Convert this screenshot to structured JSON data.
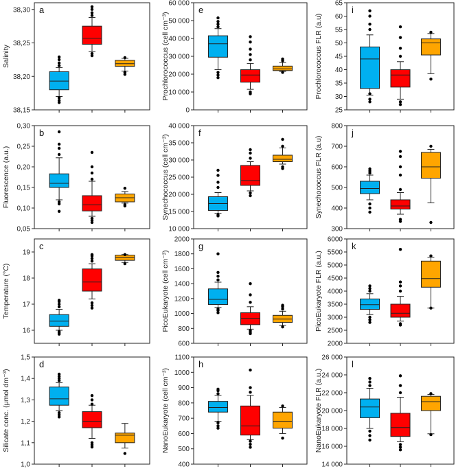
{
  "colors": {
    "blue": "#00b0f0",
    "red": "#ff0000",
    "orange": "#ffa500"
  },
  "chart_data": [
    {
      "type": "box",
      "panel": "a",
      "ylabel": "Salinity",
      "ylim": [
        38.15,
        38.31
      ],
      "ticks": [
        38.15,
        38.2,
        38.25,
        38.3
      ],
      "tick_labels": [
        "38,15",
        "38,20",
        "38,25",
        "38,30"
      ],
      "groups": [
        {
          "color": "blue",
          "whisker_low": 38.17,
          "q1": 38.18,
          "median": 38.193,
          "q3": 38.207,
          "whisker_high": 38.213,
          "outliers": [
            38.161,
            38.164,
            38.168,
            38.216,
            38.22,
            38.225,
            38.229
          ]
        },
        {
          "color": "red",
          "whisker_low": 38.237,
          "q1": 38.248,
          "median": 38.257,
          "q3": 38.275,
          "whisker_high": 38.288,
          "outliers": [
            38.231,
            38.234,
            38.291,
            38.295,
            38.3,
            38.304
          ]
        },
        {
          "color": "orange",
          "whisker_low": 38.208,
          "q1": 38.215,
          "median": 38.219,
          "q3": 38.224,
          "whisker_high": 38.227,
          "outliers": [
            38.203,
            38.206,
            38.228
          ]
        }
      ]
    },
    {
      "type": "box",
      "panel": "e",
      "ylabel": "Prochlorococcus (cell cm⁻³)",
      "ylim": [
        0,
        60000
      ],
      "ticks": [
        0,
        10000,
        20000,
        30000,
        40000,
        50000,
        60000
      ],
      "tick_labels": [
        "0",
        "10 000",
        "20 000",
        "30 000",
        "40 000",
        "50 000",
        "60 000"
      ],
      "groups": [
        {
          "color": "blue",
          "whisker_low": 22500,
          "q1": 29500,
          "median": 37000,
          "q3": 41500,
          "whisker_high": 45500,
          "outliers": [
            18000,
            19500,
            21000,
            46500,
            48000,
            49500,
            51500
          ]
        },
        {
          "color": "red",
          "whisker_low": 11500,
          "q1": 15500,
          "median": 19500,
          "q3": 22500,
          "whisker_high": 26000,
          "outliers": [
            9000,
            10000,
            28000,
            31000,
            34000,
            38000,
            41000
          ]
        },
        {
          "color": "orange",
          "whisker_low": 21500,
          "q1": 22000,
          "median": 23000,
          "q3": 24500,
          "whisker_high": 26500,
          "outliers": [
            21000,
            27500,
            28500
          ]
        }
      ]
    },
    {
      "type": "box",
      "panel": "i",
      "ylabel": "Prochlorococcus FLR (a.u)",
      "ylim": [
        25,
        65
      ],
      "ticks": [
        25,
        30,
        35,
        40,
        45,
        50,
        55,
        60,
        65
      ],
      "tick_labels": [
        "25",
        "30",
        "35",
        "40",
        "45",
        "50",
        "55",
        "60",
        "65"
      ],
      "groups": [
        {
          "color": "blue",
          "whisker_low": 30.5,
          "q1": 33,
          "median": 44,
          "q3": 48.5,
          "whisker_high": 53,
          "outliers": [
            28,
            29,
            31,
            55,
            57,
            60,
            62
          ]
        },
        {
          "color": "red",
          "whisker_low": 29,
          "q1": 33.5,
          "median": 38,
          "q3": 40,
          "whisker_high": 43,
          "outliers": [
            27,
            28,
            45,
            48,
            52,
            56
          ]
        },
        {
          "color": "orange",
          "whisker_low": 38.5,
          "q1": 45.5,
          "median": 50,
          "q3": 51.5,
          "whisker_high": 53.5,
          "outliers": [
            36.5,
            54
          ]
        }
      ]
    },
    {
      "type": "box",
      "panel": "b",
      "ylabel": "Fluorescence (a.u.)",
      "ylim": [
        0.05,
        0.3
      ],
      "ticks": [
        0.05,
        0.1,
        0.15,
        0.2,
        0.25,
        0.3
      ],
      "tick_labels": [
        "0,05",
        "0,10",
        "0,15",
        "0,20",
        "0,25",
        "0,30"
      ],
      "groups": [
        {
          "color": "blue",
          "whisker_low": 0.12,
          "q1": 0.15,
          "median": 0.16,
          "q3": 0.183,
          "whisker_high": 0.222,
          "outliers": [
            0.092,
            0.11,
            0.115,
            0.23,
            0.245,
            0.255,
            0.285
          ]
        },
        {
          "color": "red",
          "whisker_low": 0.08,
          "q1": 0.093,
          "median": 0.108,
          "q3": 0.13,
          "whisker_high": 0.165,
          "outliers": [
            0.065,
            0.07,
            0.075,
            0.17,
            0.185,
            0.2,
            0.235
          ]
        },
        {
          "color": "orange",
          "whisker_low": 0.112,
          "q1": 0.115,
          "median": 0.125,
          "q3": 0.134,
          "whisker_high": 0.14,
          "outliers": [
            0.105,
            0.108,
            0.148
          ]
        }
      ]
    },
    {
      "type": "box",
      "panel": "f",
      "ylabel": "Synechococcus (cell cm⁻³)",
      "ylim": [
        10000,
        40000
      ],
      "ticks": [
        10000,
        15000,
        20000,
        25000,
        30000,
        35000,
        40000
      ],
      "tick_labels": [
        "10 000",
        "15 000",
        "20 000",
        "25 000",
        "30 000",
        "35 000",
        "40 000"
      ],
      "groups": [
        {
          "color": "blue",
          "whisker_low": 14500,
          "q1": 15300,
          "median": 17300,
          "q3": 19300,
          "whisker_high": 20500,
          "outliers": [
            13700,
            14000,
            22000,
            23500,
            25500,
            27000
          ]
        },
        {
          "color": "red",
          "whisker_low": 21000,
          "q1": 22600,
          "median": 24000,
          "q3": 28400,
          "whisker_high": 29500,
          "outliers": [
            19600,
            20400,
            30500,
            32000,
            33000
          ]
        },
        {
          "color": "orange",
          "whisker_low": 28800,
          "q1": 29500,
          "median": 30200,
          "q3": 31400,
          "whisker_high": 33500,
          "outliers": [
            27500,
            28000,
            34000,
            36000
          ]
        }
      ]
    },
    {
      "type": "box",
      "panel": "j",
      "ylabel": "Synechococcus FLR (a.u)",
      "ylim": [
        300,
        800
      ],
      "ticks": [
        300,
        400,
        500,
        600,
        700,
        800
      ],
      "tick_labels": [
        "300",
        "400",
        "500",
        "600",
        "700",
        "800"
      ],
      "groups": [
        {
          "color": "blue",
          "whisker_low": 440,
          "q1": 470,
          "median": 495,
          "q3": 530,
          "whisker_high": 560,
          "outliers": [
            380,
            400,
            420,
            570,
            580,
            590
          ]
        },
        {
          "color": "red",
          "whisker_low": 370,
          "q1": 395,
          "median": 410,
          "q3": 440,
          "whisker_high": 475,
          "outliers": [
            335,
            345,
            490,
            560,
            600,
            650,
            675
          ]
        },
        {
          "color": "orange",
          "whisker_low": 425,
          "q1": 545,
          "median": 600,
          "q3": 670,
          "whisker_high": 685,
          "outliers": [
            330,
            700
          ]
        }
      ]
    },
    {
      "type": "box",
      "panel": "c",
      "ylabel": "Temperature (°C)",
      "ylim": [
        15.5,
        19.5
      ],
      "ticks": [
        16,
        17,
        18,
        19
      ],
      "tick_labels": [
        "16",
        "17",
        "18",
        "19"
      ],
      "groups": [
        {
          "color": "blue",
          "whisker_low": 16.0,
          "q1": 16.15,
          "median": 16.35,
          "q3": 16.6,
          "whisker_high": 16.8,
          "outliers": [
            15.85,
            15.9,
            15.95,
            16.9,
            17.0,
            17.1,
            17.15
          ]
        },
        {
          "color": "red",
          "whisker_low": 17.2,
          "q1": 17.5,
          "median": 17.85,
          "q3": 18.35,
          "whisker_high": 18.55,
          "outliers": [
            16.85,
            16.95,
            17.05,
            18.65,
            18.75,
            18.85,
            18.9
          ]
        },
        {
          "color": "orange",
          "whisker_low": 18.6,
          "q1": 18.68,
          "median": 18.78,
          "q3": 18.88,
          "whisker_high": 18.9,
          "outliers": [
            18.55,
            18.9
          ]
        }
      ]
    },
    {
      "type": "box",
      "panel": "g",
      "ylabel": "PicoEukaryote (cell cm⁻³)",
      "ylim": [
        600,
        2000
      ],
      "ticks": [
        600,
        800,
        1000,
        1200,
        1400,
        1600,
        1800,
        2000
      ],
      "tick_labels": [
        "600",
        "800",
        "1000",
        "1200",
        "1400",
        "1600",
        "1800",
        "2000"
      ],
      "groups": [
        {
          "color": "blue",
          "whisker_low": 1080,
          "q1": 1120,
          "median": 1190,
          "q3": 1330,
          "whisker_high": 1420,
          "outliers": [
            1010,
            1040,
            1060,
            1450,
            1500,
            1550,
            1800
          ]
        },
        {
          "color": "red",
          "whisker_low": 790,
          "q1": 850,
          "median": 935,
          "q3": 1010,
          "whisker_high": 1090,
          "outliers": [
            730,
            750,
            770,
            1150,
            1250,
            1400
          ]
        },
        {
          "color": "orange",
          "whisker_low": 840,
          "q1": 880,
          "median": 925,
          "q3": 975,
          "whisker_high": 1030,
          "outliers": [
            820,
            1060,
            1090,
            1110
          ]
        }
      ]
    },
    {
      "type": "box",
      "panel": "k",
      "ylabel": "PicoEukaryote FLR (a.u.)",
      "ylim": [
        2000,
        6000
      ],
      "ticks": [
        2000,
        2500,
        3000,
        3500,
        4000,
        4500,
        5000,
        5500,
        6000
      ],
      "tick_labels": [
        "2000",
        "2500",
        "3000",
        "3500",
        "4000",
        "4500",
        "5000",
        "5500",
        "6000"
      ],
      "groups": [
        {
          "color": "blue",
          "whisker_low": 3100,
          "q1": 3300,
          "median": 3480,
          "q3": 3700,
          "whisker_high": 3900,
          "outliers": [
            2800,
            2900,
            3000,
            4000,
            4100,
            4200
          ]
        },
        {
          "color": "red",
          "whisker_low": 2850,
          "q1": 3000,
          "median": 3150,
          "q3": 3500,
          "whisker_high": 3800,
          "outliers": [
            2700,
            2750,
            4000,
            4200,
            4350,
            5600
          ]
        },
        {
          "color": "orange",
          "whisker_low": 3350,
          "q1": 4150,
          "median": 4480,
          "q3": 5150,
          "whisker_high": 5300,
          "outliers": [
            3350,
            5350
          ]
        }
      ]
    },
    {
      "type": "box",
      "panel": "d",
      "ylabel": "Silicate conc. (μmol dm⁻³)",
      "ylim": [
        1.0,
        1.5
      ],
      "ticks": [
        1.0,
        1.1,
        1.2,
        1.3,
        1.4,
        1.5
      ],
      "tick_labels": [
        "1,0",
        "1,1",
        "1,2",
        "1,3",
        "1,4",
        "1,5"
      ],
      "groups": [
        {
          "color": "blue",
          "whisker_low": 1.25,
          "q1": 1.275,
          "median": 1.305,
          "q3": 1.36,
          "whisker_high": 1.38,
          "outliers": [
            1.22,
            1.23,
            1.24,
            1.39,
            1.4,
            1.41,
            1.42
          ]
        },
        {
          "color": "red",
          "whisker_low": 1.12,
          "q1": 1.17,
          "median": 1.2,
          "q3": 1.245,
          "whisker_high": 1.275,
          "outliers": [
            1.08,
            1.09,
            1.1,
            1.28,
            1.3,
            1.32
          ]
        },
        {
          "color": "orange",
          "whisker_low": 1.075,
          "q1": 1.1,
          "median": 1.135,
          "q3": 1.145,
          "whisker_high": 1.19,
          "outliers": [
            1.05
          ]
        }
      ]
    },
    {
      "type": "box",
      "panel": "h",
      "ylabel": "NanoEukaryote (cell cm⁻³)",
      "ylim": [
        400,
        1100
      ],
      "ticks": [
        400,
        500,
        600,
        700,
        800,
        900,
        1000,
        1100
      ],
      "tick_labels": [
        "400",
        "500",
        "600",
        "700",
        "800",
        "900",
        "1000",
        "1100"
      ],
      "groups": [
        {
          "color": "blue",
          "whisker_low": 680,
          "q1": 740,
          "median": 770,
          "q3": 810,
          "whisker_high": 850,
          "outliers": [
            635,
            650,
            670,
            860,
            880,
            890
          ]
        },
        {
          "color": "red",
          "whisker_low": 560,
          "q1": 590,
          "median": 650,
          "q3": 780,
          "whisker_high": 850,
          "outliers": [
            510,
            530,
            550,
            870,
            900,
            1015
          ]
        },
        {
          "color": "orange",
          "whisker_low": 600,
          "q1": 635,
          "median": 680,
          "q3": 740,
          "whisker_high": 770,
          "outliers": [
            570,
            780
          ]
        }
      ]
    },
    {
      "type": "box",
      "panel": "l",
      "ylabel": "NanoEukaryote FLR (a.u.)",
      "ylim": [
        14000,
        26000
      ],
      "ticks": [
        14000,
        16000,
        18000,
        20000,
        22000,
        24000,
        26000
      ],
      "tick_labels": [
        "14 000",
        "16 000",
        "18 000",
        "20 000",
        "22 000",
        "24 000",
        "26 000"
      ],
      "groups": [
        {
          "color": "blue",
          "whisker_low": 18000,
          "q1": 19200,
          "median": 20400,
          "q3": 21300,
          "whisker_high": 22500,
          "outliers": [
            16700,
            17200,
            17700,
            22800,
            23200,
            23600
          ]
        },
        {
          "color": "red",
          "whisker_low": 16500,
          "q1": 17100,
          "median": 18100,
          "q3": 19700,
          "whisker_high": 21500,
          "outliers": [
            15600,
            15900,
            16200,
            22000,
            22800,
            23900
          ]
        },
        {
          "color": "orange",
          "whisker_low": 17400,
          "q1": 20000,
          "median": 21000,
          "q3": 21600,
          "whisker_high": 21800,
          "outliers": [
            17300,
            21900
          ]
        }
      ]
    }
  ]
}
